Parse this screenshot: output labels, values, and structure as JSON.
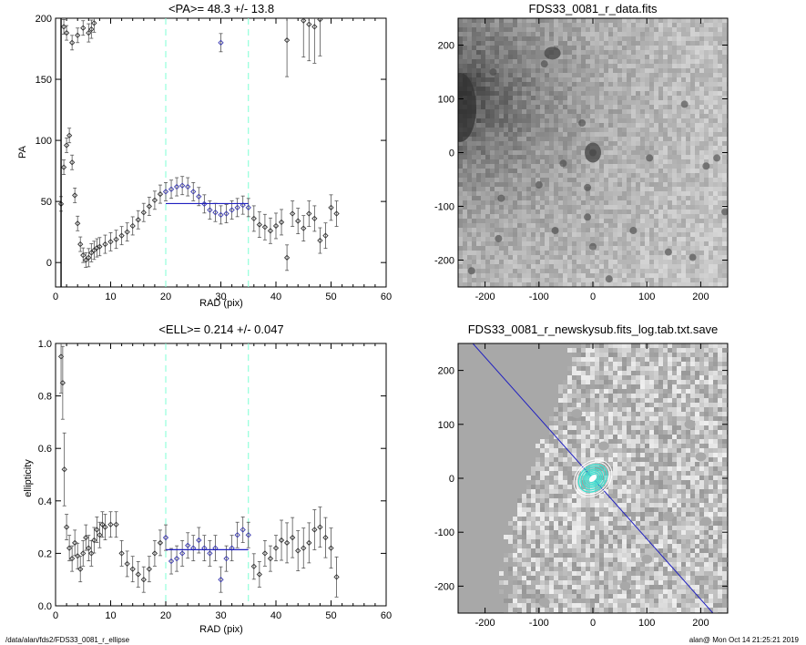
{
  "footer": {
    "path": "/data/alan/fds2/FDS33_0081_r_ellipse",
    "user_time": "alan@  Mon Oct 14 21:25:21 2019"
  },
  "colors": {
    "profile": "#000000",
    "fit_points": "#3a3ab0",
    "fit_line": "#2020c0",
    "marker_lines": "#7fffd4",
    "contours": "#40e0d0",
    "pa_line": "#2020c0"
  },
  "chart_data": [
    {
      "type": "scatter",
      "title": "<PA>=  48.3 +/-  13.8",
      "xlabel": "RAD (pix)",
      "ylabel": "PA",
      "xlim": [
        0,
        60
      ],
      "ylim": [
        -20,
        200
      ],
      "xticks": [
        "0",
        "10",
        "20",
        "30",
        "40",
        "50",
        "60"
      ],
      "yticks": [
        "0",
        "50",
        "100",
        "150",
        "200"
      ],
      "grid": false,
      "marker_lines_x": [
        20,
        35
      ],
      "mean_line": {
        "x": [
          20,
          35
        ],
        "y": 48.3
      },
      "series": [
        {
          "values": [
            [
              1,
              48
            ],
            [
              1.5,
              78
            ],
            [
              2,
              96
            ],
            [
              2.5,
              104
            ],
            [
              3,
              82
            ],
            [
              3.5,
              55
            ],
            [
              4,
              32
            ],
            [
              4.5,
              15
            ],
            [
              5,
              6
            ],
            [
              5.5,
              2
            ],
            [
              6,
              4
            ],
            [
              6.5,
              8
            ],
            [
              7,
              10
            ],
            [
              7.5,
              12
            ],
            [
              8,
              13
            ],
            [
              9,
              15
            ],
            [
              10,
              17
            ],
            [
              11,
              19
            ],
            [
              12,
              22
            ],
            [
              13,
              25
            ],
            [
              14,
              30
            ],
            [
              15,
              35
            ],
            [
              16,
              41
            ],
            [
              17,
              46
            ],
            [
              18,
              51
            ],
            [
              19,
              56
            ],
            [
              20,
              58
            ],
            [
              21,
              60
            ],
            [
              22,
              62
            ],
            [
              23,
              63
            ],
            [
              24,
              62
            ],
            [
              25,
              58
            ],
            [
              26,
              54
            ],
            [
              27,
              48
            ],
            [
              28,
              43
            ],
            [
              29,
              41
            ],
            [
              30,
              39
            ],
            [
              31,
              40
            ],
            [
              32,
              43
            ],
            [
              33,
              45
            ],
            [
              34,
              47
            ],
            [
              35,
              45
            ],
            [
              36,
              36
            ],
            [
              37,
              31
            ],
            [
              38,
              29
            ],
            [
              39,
              26
            ],
            [
              40,
              30
            ],
            [
              41,
              33
            ],
            [
              42,
              4
            ],
            [
              43,
              40
            ],
            [
              44,
              34
            ],
            [
              45,
              28
            ],
            [
              46,
              40
            ],
            [
              47,
              36
            ],
            [
              48,
              18
            ],
            [
              49,
              22
            ],
            [
              50,
              45
            ],
            [
              51,
              40
            ],
            [
              1.5,
              193
            ],
            [
              2,
              188
            ],
            [
              3,
              180
            ],
            [
              4,
              186
            ],
            [
              5,
              192
            ],
            [
              6,
              188
            ],
            [
              6.5,
              191
            ],
            [
              7,
              196
            ],
            [
              30,
              180
            ],
            [
              42,
              182
            ],
            [
              45,
              198
            ],
            [
              46,
              195
            ],
            [
              47,
              193
            ],
            [
              48,
              199
            ]
          ]
        }
      ]
    },
    {
      "type": "scatter",
      "title": "<ELL>= 0.214 +/-  0.047",
      "xlabel": "RAD (pix)",
      "ylabel": "ellipticity",
      "xlim": [
        0,
        60
      ],
      "ylim": [
        0,
        1.0
      ],
      "xticks": [
        "0",
        "10",
        "20",
        "30",
        "40",
        "50",
        "60"
      ],
      "yticks": [
        "0.0",
        "0.2",
        "0.4",
        "0.6",
        "0.8",
        "1.0"
      ],
      "grid": false,
      "marker_lines_x": [
        20,
        35
      ],
      "mean_line": {
        "x": [
          20,
          35
        ],
        "y": 0.214
      },
      "series": [
        {
          "values": [
            [
              1,
              0.95
            ],
            [
              1.3,
              0.85
            ],
            [
              1.6,
              0.52
            ],
            [
              2,
              0.3
            ],
            [
              2.5,
              0.22
            ],
            [
              3,
              0.18
            ],
            [
              3.5,
              0.24
            ],
            [
              4,
              0.19
            ],
            [
              4.5,
              0.14
            ],
            [
              5,
              0.2
            ],
            [
              5.5,
              0.26
            ],
            [
              6,
              0.22
            ],
            [
              6.5,
              0.2
            ],
            [
              7,
              0.25
            ],
            [
              7.5,
              0.29
            ],
            [
              8,
              0.27
            ],
            [
              8.5,
              0.31
            ],
            [
              9,
              0.3
            ],
            [
              10,
              0.31
            ],
            [
              11,
              0.31
            ],
            [
              12,
              0.2
            ],
            [
              13,
              0.16
            ],
            [
              14,
              0.14
            ],
            [
              15,
              0.12
            ],
            [
              16,
              0.1
            ],
            [
              17,
              0.14
            ],
            [
              18,
              0.2
            ],
            [
              19,
              0.24
            ],
            [
              20,
              0.26
            ],
            [
              21,
              0.17
            ],
            [
              22,
              0.18
            ],
            [
              23,
              0.2
            ],
            [
              24,
              0.23
            ],
            [
              25,
              0.22
            ],
            [
              26,
              0.25
            ],
            [
              27,
              0.22
            ],
            [
              28,
              0.2
            ],
            [
              29,
              0.22
            ],
            [
              30,
              0.1
            ],
            [
              31,
              0.18
            ],
            [
              32,
              0.22
            ],
            [
              33,
              0.27
            ],
            [
              34,
              0.29
            ],
            [
              35,
              0.27
            ],
            [
              36,
              0.15
            ],
            [
              37,
              0.12
            ],
            [
              38,
              0.2
            ],
            [
              39,
              0.18
            ],
            [
              40,
              0.22
            ],
            [
              41,
              0.25
            ],
            [
              42,
              0.24
            ],
            [
              43,
              0.26
            ],
            [
              44,
              0.21
            ],
            [
              45,
              0.22
            ],
            [
              46,
              0.24
            ],
            [
              47,
              0.29
            ],
            [
              48,
              0.3
            ],
            [
              49,
              0.26
            ],
            [
              50,
              0.22
            ],
            [
              51,
              0.11
            ]
          ]
        }
      ]
    },
    {
      "type": "heatmap",
      "title": "FDS33_0081_r_data.fits",
      "xlim": [
        -250,
        250
      ],
      "ylim": [
        -250,
        250
      ],
      "xticks": [
        "-200",
        "-100",
        "0",
        "100",
        "200"
      ],
      "yticks": [
        "-200",
        "-100",
        "0",
        "100",
        "200"
      ],
      "sources": [
        [
          0,
          0
        ],
        [
          -75,
          185
        ],
        [
          -90,
          165
        ],
        [
          -185,
          150
        ],
        [
          -20,
          55
        ],
        [
          0,
          0
        ],
        [
          -10,
          -65
        ],
        [
          75,
          -145
        ],
        [
          -70,
          -145
        ],
        [
          105,
          -10
        ],
        [
          -170,
          -85
        ],
        [
          -175,
          -160
        ],
        [
          210,
          -25
        ],
        [
          230,
          -10
        ],
        [
          245,
          -110
        ],
        [
          -100,
          -60
        ],
        [
          -55,
          -20
        ],
        [
          140,
          -185
        ],
        [
          185,
          -195
        ],
        [
          -225,
          -220
        ],
        [
          -10,
          -120
        ],
        [
          0,
          -175
        ],
        [
          170,
          90
        ],
        [
          30,
          -235
        ]
      ]
    },
    {
      "type": "heatmap",
      "title": "FDS33_0081_r_newskysub.fits_log.tab.txt.save",
      "xlim": [
        -250,
        250
      ],
      "ylim": [
        -250,
        250
      ],
      "xticks": [
        "-200",
        "-100",
        "0",
        "100",
        "200"
      ],
      "yticks": [
        "-200",
        "-100",
        "0",
        "100",
        "200"
      ],
      "pa_line_deg": 48.3,
      "ellipse_ell": 0.214
    }
  ]
}
